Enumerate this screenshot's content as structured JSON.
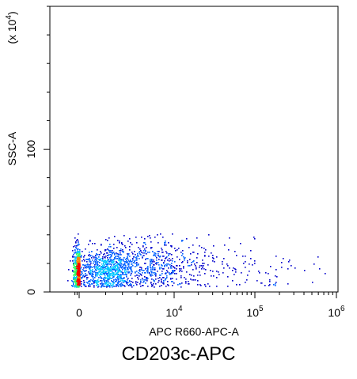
{
  "chart_data": {
    "type": "scatter",
    "title": "CD203c-APC",
    "xlabel": "APC R660-APC-A",
    "ylabel": "SSC-A",
    "y_multiplier_label": "(x 10",
    "y_multiplier_exponent": "4",
    "x_scale": "biexponential",
    "x_tick_labels": [
      {
        "base": "0",
        "exp": ""
      },
      {
        "base": "10",
        "exp": "4"
      },
      {
        "base": "10",
        "exp": "5"
      },
      {
        "base": "10",
        "exp": "6"
      }
    ],
    "x_tick_values": [
      0,
      10000,
      100000,
      1000000
    ],
    "y_tick_labels": [
      "0",
      "100"
    ],
    "y_tick_values": [
      0,
      100
    ],
    "ylim": [
      0,
      200
    ],
    "grid": false,
    "legend": "none",
    "density_colors": [
      "#0000cc",
      "#0060ff",
      "#00c8ff",
      "#33ff66",
      "#ffff00",
      "#ff8800",
      "#ff0000"
    ],
    "populations": [
      {
        "name_hidden": true,
        "x_center": 0,
        "x_spread_decades": 0.15,
        "y_center": 15,
        "y_spread": 8,
        "count": 1400
      },
      {
        "name_hidden": true,
        "x_center": 3000,
        "x_spread_decades": 0.6,
        "y_center": 18,
        "y_spread": 10,
        "count": 700
      },
      {
        "name_hidden": true,
        "x_center": 60000,
        "x_spread_decades": 0.7,
        "y_center": 16,
        "y_spread": 9,
        "count": 90
      }
    ]
  }
}
